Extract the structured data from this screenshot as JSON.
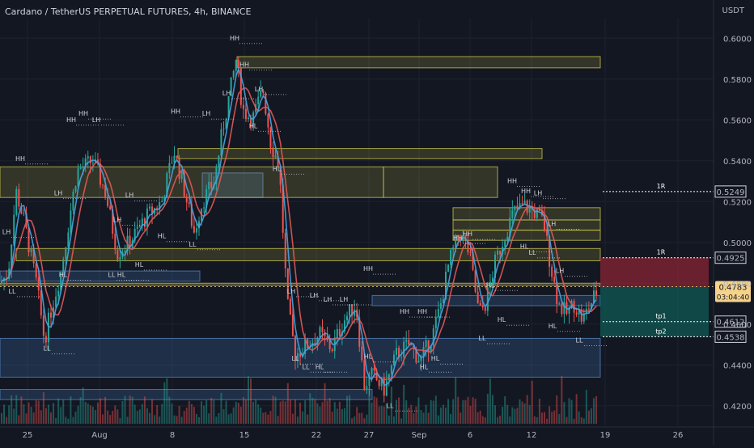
{
  "header": {
    "title": "Cardano / TetherUS PERPETUAL FUTURES, 4h, BINANCE",
    "unit": "USDT"
  },
  "colors": {
    "background": "#131722",
    "grid": "#1e2230",
    "up": "#26a69a",
    "down": "#ef5350",
    "zone_yellow": "#c8c34a",
    "zone_blue": "#3d6fa8",
    "ma_fast": "#4aa3df",
    "ma_slow": "#e05a5a",
    "price_tag": "#f5d28a"
  },
  "chart_data": {
    "type": "candlestick",
    "x_ticks": [
      "25",
      "Aug",
      "8",
      "15",
      "22",
      "27",
      "Sep",
      "6",
      "12",
      "19",
      "26"
    ],
    "y_ticks": [
      "0.6000",
      "0.5800",
      "0.5600",
      "0.5400",
      "0.5200",
      "0.5000",
      "0.4800",
      "0.4600",
      "0.4400",
      "0.4200"
    ],
    "ylim": [
      0.41,
      0.61
    ],
    "price_path": [
      [
        0,
        0.48
      ],
      [
        10,
        0.485
      ],
      [
        20,
        0.525
      ],
      [
        30,
        0.51
      ],
      [
        45,
        0.48
      ],
      [
        55,
        0.452
      ],
      [
        62,
        0.465
      ],
      [
        75,
        0.485
      ],
      [
        95,
        0.535
      ],
      [
        115,
        0.54
      ],
      [
        130,
        0.525
      ],
      [
        145,
        0.495
      ],
      [
        160,
        0.5
      ],
      [
        180,
        0.512
      ],
      [
        200,
        0.52
      ],
      [
        215,
        0.545
      ],
      [
        225,
        0.53
      ],
      [
        240,
        0.505
      ],
      [
        250,
        0.52
      ],
      [
        265,
        0.53
      ],
      [
        275,
        0.555
      ],
      [
        285,
        0.575
      ],
      [
        292,
        0.59
      ],
      [
        300,
        0.565
      ],
      [
        312,
        0.56
      ],
      [
        325,
        0.575
      ],
      [
        335,
        0.548
      ],
      [
        345,
        0.538
      ],
      [
        355,
        0.47
      ],
      [
        365,
        0.445
      ],
      [
        380,
        0.45
      ],
      [
        395,
        0.455
      ],
      [
        410,
        0.448
      ],
      [
        425,
        0.462
      ],
      [
        440,
        0.47
      ],
      [
        450,
        0.43
      ],
      [
        460,
        0.435
      ],
      [
        475,
        0.428
      ],
      [
        490,
        0.445
      ],
      [
        505,
        0.45
      ],
      [
        520,
        0.442
      ],
      [
        535,
        0.455
      ],
      [
        545,
        0.47
      ],
      [
        555,
        0.49
      ],
      [
        568,
        0.505
      ],
      [
        580,
        0.495
      ],
      [
        592,
        0.465
      ],
      [
        600,
        0.47
      ],
      [
        612,
        0.49
      ],
      [
        625,
        0.505
      ],
      [
        635,
        0.515
      ],
      [
        648,
        0.518
      ],
      [
        660,
        0.515
      ],
      [
        672,
        0.51
      ],
      [
        680,
        0.49
      ],
      [
        690,
        0.47
      ],
      [
        700,
        0.465
      ],
      [
        710,
        0.47
      ],
      [
        720,
        0.462
      ],
      [
        730,
        0.47
      ],
      [
        740,
        0.478
      ]
    ],
    "yellow_zones": [
      {
        "x1": 293,
        "x2": 742,
        "y_top": 0.591,
        "y_bot": 0.5855
      },
      {
        "x1": 220,
        "x2": 670,
        "y_top": 0.546,
        "y_bot": 0.541
      },
      {
        "x1": 0,
        "x2": 474,
        "y_top": 0.537,
        "y_bot": 0.522
      },
      {
        "x1": 474,
        "x2": 615,
        "y_top": 0.537,
        "y_bot": 0.522
      },
      {
        "x1": 560,
        "x2": 742,
        "y_top": 0.517,
        "y_bot": 0.511
      },
      {
        "x1": 560,
        "x2": 742,
        "y_top": 0.511,
        "y_bot": 0.506
      },
      {
        "x1": 560,
        "x2": 742,
        "y_top": 0.506,
        "y_bot": 0.501
      },
      {
        "x1": 20,
        "x2": 742,
        "y_top": 0.497,
        "y_bot": 0.491
      },
      {
        "x1": 0,
        "x2": 742,
        "y_top": 0.48,
        "y_bot": 0.479
      }
    ],
    "blue_zones": [
      {
        "x1": 250,
        "x2": 325,
        "y_top": 0.534,
        "y_bot": 0.522
      },
      {
        "x1": 0,
        "x2": 247,
        "y_top": 0.486,
        "y_bot": 0.481
      },
      {
        "x1": 460,
        "x2": 742,
        "y_top": 0.474,
        "y_bot": 0.469
      },
      {
        "x1": 0,
        "x2": 742,
        "y_top": 0.453,
        "y_bot": 0.434
      },
      {
        "x1": 0,
        "x2": 460,
        "y_top": 0.428,
        "y_bot": 0.423
      }
    ],
    "swing_labels": [
      {
        "t": "HH",
        "x": 25,
        "y": 0.54
      },
      {
        "t": "LH",
        "x": 8,
        "y": 0.504
      },
      {
        "t": "LL",
        "x": 15,
        "y": 0.475
      },
      {
        "t": "LL",
        "x": 58,
        "y": 0.447
      },
      {
        "t": "HL",
        "x": 78,
        "y": 0.483
      },
      {
        "t": "LH",
        "x": 72,
        "y": 0.523
      },
      {
        "t": "HH",
        "x": 88,
        "y": 0.559
      },
      {
        "t": "HH",
        "x": 103,
        "y": 0.562
      },
      {
        "t": "LH",
        "x": 119,
        "y": 0.559
      },
      {
        "t": "LH",
        "x": 160,
        "y": 0.522
      },
      {
        "t": "LL",
        "x": 138,
        "y": 0.483
      },
      {
        "t": "HL",
        "x": 150,
        "y": 0.483
      },
      {
        "t": "HL",
        "x": 172,
        "y": 0.488
      },
      {
        "t": "HL",
        "x": 200,
        "y": 0.502
      },
      {
        "t": "LH",
        "x": 145,
        "y": 0.51
      },
      {
        "t": "HH",
        "x": 217,
        "y": 0.563
      },
      {
        "t": "LH",
        "x": 255,
        "y": 0.562
      },
      {
        "t": "LL",
        "x": 238,
        "y": 0.498
      },
      {
        "t": "HH",
        "x": 290,
        "y": 0.599
      },
      {
        "t": "HH",
        "x": 302,
        "y": 0.586
      },
      {
        "t": "LH",
        "x": 280,
        "y": 0.572
      },
      {
        "t": "LH",
        "x": 320,
        "y": 0.574
      },
      {
        "t": "HL",
        "x": 313,
        "y": 0.556
      },
      {
        "t": "HL",
        "x": 342,
        "y": 0.535
      },
      {
        "t": "LH",
        "x": 360,
        "y": 0.475
      },
      {
        "t": "LL",
        "x": 365,
        "y": 0.442
      },
      {
        "t": "LL",
        "x": 378,
        "y": 0.438
      },
      {
        "t": "HL",
        "x": 395,
        "y": 0.438
      },
      {
        "t": "LH",
        "x": 388,
        "y": 0.473
      },
      {
        "t": "LH",
        "x": 405,
        "y": 0.471
      },
      {
        "t": "LH",
        "x": 425,
        "y": 0.471
      },
      {
        "t": "HH",
        "x": 455,
        "y": 0.486
      },
      {
        "t": "HL",
        "x": 455,
        "y": 0.443
      },
      {
        "t": "LL",
        "x": 482,
        "y": 0.419
      },
      {
        "t": "HH",
        "x": 500,
        "y": 0.465
      },
      {
        "t": "HH",
        "x": 522,
        "y": 0.465
      },
      {
        "t": "HL",
        "x": 538,
        "y": 0.442
      },
      {
        "t": "HL",
        "x": 524,
        "y": 0.438
      },
      {
        "t": "HH",
        "x": 566,
        "y": 0.501
      },
      {
        "t": "HH",
        "x": 578,
        "y": 0.503
      },
      {
        "t": "LL",
        "x": 596,
        "y": 0.452
      },
      {
        "t": "HL",
        "x": 620,
        "y": 0.461
      },
      {
        "t": "HL",
        "x": 606,
        "y": 0.478
      },
      {
        "t": "HH",
        "x": 633,
        "y": 0.529
      },
      {
        "t": "HH",
        "x": 650,
        "y": 0.524
      },
      {
        "t": "LH",
        "x": 665,
        "y": 0.523
      },
      {
        "t": "HL",
        "x": 648,
        "y": 0.497
      },
      {
        "t": "LL",
        "x": 658,
        "y": 0.494
      },
      {
        "t": "HL",
        "x": 683,
        "y": 0.458
      },
      {
        "t": "LH",
        "x": 682,
        "y": 0.508
      },
      {
        "t": "LH",
        "x": 692,
        "y": 0.485
      },
      {
        "t": "LL",
        "x": 716,
        "y": 0.451
      }
    ],
    "risk_box": {
      "x1": 742,
      "x2": 876,
      "entry": 0.4783,
      "stop": 0.4925,
      "tp1": 0.4612,
      "tp2": 0.4538
    },
    "levels": [
      {
        "label": "1R",
        "value": 0.5249,
        "price": "0.5249"
      },
      {
        "label": "1R",
        "value": 0.4925,
        "price": "0.4925"
      },
      {
        "label": "tp1",
        "value": 0.4612,
        "price": "0.4612"
      },
      {
        "label": "tp2",
        "value": 0.4538,
        "price": "0.4538"
      }
    ],
    "current": {
      "price": "0.4783",
      "countdown": "03:04:40",
      "value": 0.4783
    }
  }
}
